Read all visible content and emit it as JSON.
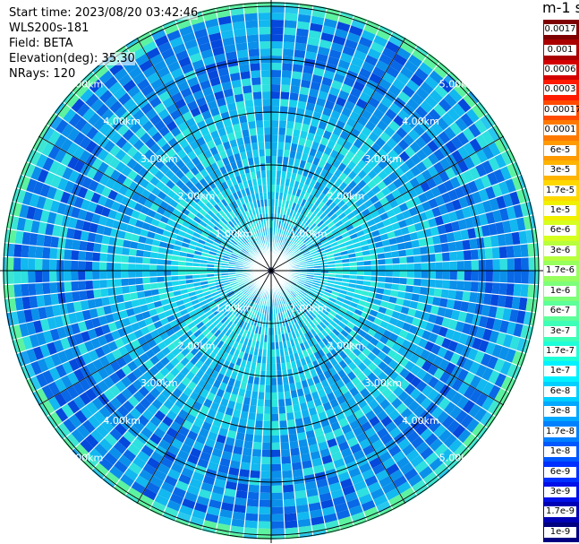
{
  "info": {
    "start_time": "Start time: 2023/08/20 03:42:46",
    "instrument": "WLS200s-181",
    "field": "Field: BETA",
    "elevation": "Elevation(deg): 35.30",
    "nrays": "NRays: 120"
  },
  "colorbar": {
    "unit_label": "m-1 sr-1",
    "labels": [
      "0.0017",
      "0.001",
      "0.0006",
      "0.0003",
      "0.00017",
      "0.0001",
      "6e-5",
      "3e-5",
      "1.7e-5",
      "1e-5",
      "6e-6",
      "3e-6",
      "1.7e-6",
      "1e-6",
      "6e-7",
      "3e-7",
      "1.7e-7",
      "1e-7",
      "6e-8",
      "3e-8",
      "1.7e-8",
      "1e-8",
      "6e-9",
      "3e-9",
      "1.7e-9",
      "1e-9"
    ],
    "colors": [
      "#7f0000",
      "#aa0000",
      "#d40000",
      "#ff1a00",
      "#ff4a00",
      "#ff7800",
      "#ff9a00",
      "#ffb400",
      "#ffd800",
      "#f0f000",
      "#d6ff1f",
      "#b8ff3e",
      "#98ff5e",
      "#7dff7a",
      "#5cff9a",
      "#3effb8",
      "#1effd8",
      "#00f2ff",
      "#00d0ff",
      "#00a8ff",
      "#0080ff",
      "#0058ff",
      "#0030ff",
      "#0010e8",
      "#0000b4",
      "#000080"
    ]
  },
  "range_labels": [
    "1.00km",
    "2.00km",
    "3.00km",
    "4.00km",
    "5.00km"
  ],
  "rings": [
    1,
    2,
    3,
    4,
    5,
    6
  ],
  "chart_data": {
    "type": "heatmap",
    "title": "",
    "field": "BETA",
    "elevation_deg": 35.3,
    "n_rays": 120,
    "range_unit": "km",
    "range_max_km": 6.5,
    "colorscale": "log",
    "color_range": [
      1e-09,
      0.0017
    ],
    "typical_values": [
      {
        "range_km": [
          0,
          2.0
        ],
        "beta": "about 1.7e-7 to 6e-8"
      },
      {
        "range_km": [
          2.0,
          5.0
        ],
        "beta": "about 3e-8 to 1e-8"
      },
      {
        "range_km": [
          5.0,
          5.5
        ],
        "beta": "about 1.7e-7 to 3e-7"
      },
      {
        "range_km": [
          5.5,
          6.5
        ],
        "beta": "about 3e-8 to 6e-9"
      }
    ]
  }
}
